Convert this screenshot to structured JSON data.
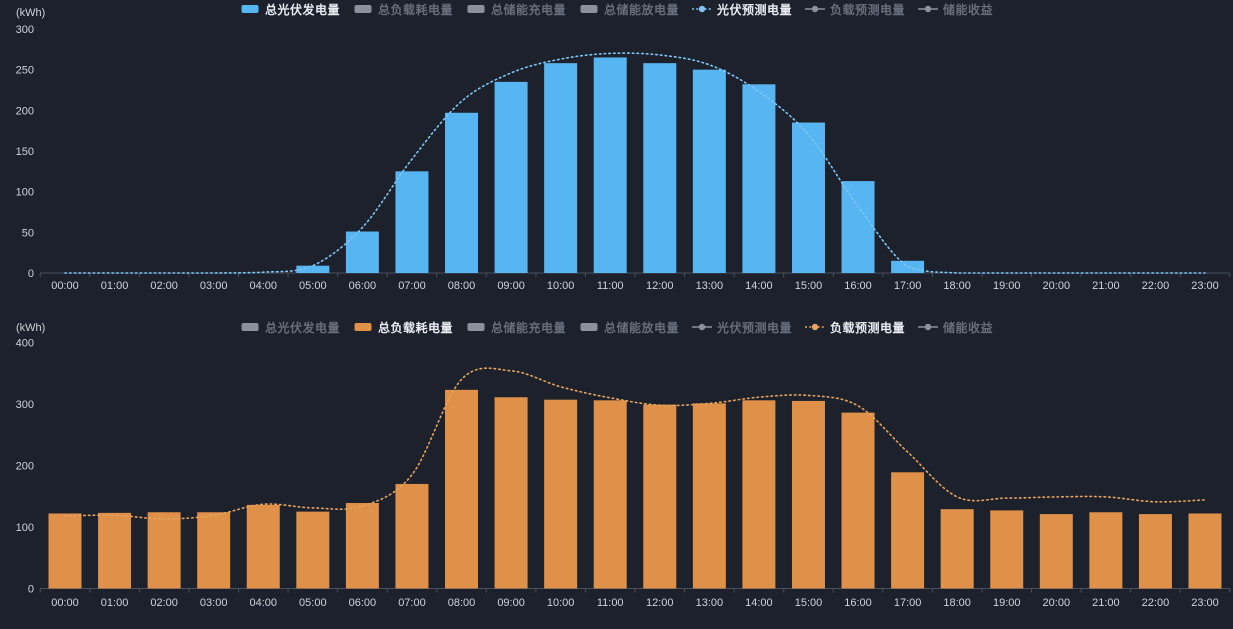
{
  "colors": {
    "background": "#1c212b",
    "axis_line": "#4a515e",
    "tick_label": "#ced3db",
    "legend_active_text": "#e8ecf2",
    "legend_inactive_text": "#676e7a",
    "legend_inactive_marker": "#8b919c",
    "pv_bar": "#57b6f2",
    "pv_forecast": "#7ec6f7",
    "load_bar": "#df9049",
    "load_forecast": "#e5a35e"
  },
  "chart_data": [
    {
      "type": "bar",
      "name": "pv-generation-chart",
      "unit": "(kWh)",
      "ylim": [
        0,
        300
      ],
      "yticks": [
        0,
        50,
        100,
        150,
        200,
        250,
        300
      ],
      "grid": false,
      "legend_position": "bottom",
      "categories": [
        "00:00",
        "01:00",
        "02:00",
        "03:00",
        "04:00",
        "05:00",
        "06:00",
        "07:00",
        "08:00",
        "09:00",
        "10:00",
        "11:00",
        "12:00",
        "13:00",
        "14:00",
        "15:00",
        "16:00",
        "17:00",
        "18:00",
        "19:00",
        "20:00",
        "21:00",
        "22:00",
        "23:00"
      ],
      "series": [
        {
          "name": "总光伏发电量",
          "type": "bar",
          "color_key": "pv_bar",
          "values": [
            0,
            0,
            0,
            0,
            0,
            9,
            51,
            125,
            197,
            235,
            258,
            265,
            258,
            250,
            232,
            185,
            113,
            15,
            0,
            0,
            0,
            0,
            0,
            0
          ]
        },
        {
          "name": "光伏预测电量",
          "type": "line",
          "style": "dotted",
          "color_key": "pv_forecast",
          "values": [
            0,
            0,
            0,
            0,
            1,
            9,
            56,
            140,
            211,
            246,
            263,
            270,
            268,
            256,
            223,
            170,
            82,
            8,
            0,
            0,
            0,
            0,
            0,
            0
          ]
        }
      ],
      "legend": [
        {
          "label": "总光伏发电量",
          "marker": "bar",
          "active": true,
          "color_key": "pv_bar"
        },
        {
          "label": "总负载耗电量",
          "marker": "bar",
          "active": false
        },
        {
          "label": "总储能充电量",
          "marker": "bar",
          "active": false
        },
        {
          "label": "总储能放电量",
          "marker": "bar",
          "active": false
        },
        {
          "label": "光伏预测电量",
          "marker": "line",
          "active": true,
          "color_key": "pv_forecast",
          "line_style": "dotted"
        },
        {
          "label": "负载预测电量",
          "marker": "line",
          "active": false
        },
        {
          "label": "储能收益",
          "marker": "line",
          "active": false
        }
      ]
    },
    {
      "type": "bar",
      "name": "load-consumption-chart",
      "unit": "(kWh)",
      "ylim": [
        0,
        400
      ],
      "yticks": [
        0,
        100,
        200,
        300,
        400
      ],
      "grid": false,
      "legend_position": "bottom",
      "categories": [
        "00:00",
        "01:00",
        "02:00",
        "03:00",
        "04:00",
        "05:00",
        "06:00",
        "07:00",
        "08:00",
        "09:00",
        "10:00",
        "11:00",
        "12:00",
        "13:00",
        "14:00",
        "15:00",
        "16:00",
        "17:00",
        "18:00",
        "19:00",
        "20:00",
        "21:00",
        "22:00",
        "23:00"
      ],
      "series": [
        {
          "name": "总负载耗电量",
          "type": "bar",
          "color_key": "load_bar",
          "values": [
            122,
            123,
            124,
            124,
            136,
            125,
            139,
            170,
            323,
            311,
            307,
            306,
            299,
            301,
            306,
            305,
            286,
            189,
            129,
            127,
            121,
            124,
            121,
            122
          ]
        },
        {
          "name": "负载预测电量",
          "type": "line",
          "style": "dotted",
          "color_key": "load_forecast",
          "values": [
            118,
            119,
            113,
            119,
            137,
            131,
            134,
            185,
            340,
            354,
            328,
            310,
            298,
            301,
            311,
            314,
            297,
            222,
            149,
            147,
            149,
            149,
            141,
            144
          ]
        }
      ],
      "legend": [
        {
          "label": "总光伏发电量",
          "marker": "bar",
          "active": false
        },
        {
          "label": "总负载耗电量",
          "marker": "bar",
          "active": true,
          "color_key": "load_bar"
        },
        {
          "label": "总储能充电量",
          "marker": "bar",
          "active": false
        },
        {
          "label": "总储能放电量",
          "marker": "bar",
          "active": false
        },
        {
          "label": "光伏预测电量",
          "marker": "line",
          "active": false
        },
        {
          "label": "负载预测电量",
          "marker": "line",
          "active": true,
          "color_key": "load_forecast",
          "line_style": "dotted"
        },
        {
          "label": "储能收益",
          "marker": "line",
          "active": false
        }
      ]
    }
  ]
}
